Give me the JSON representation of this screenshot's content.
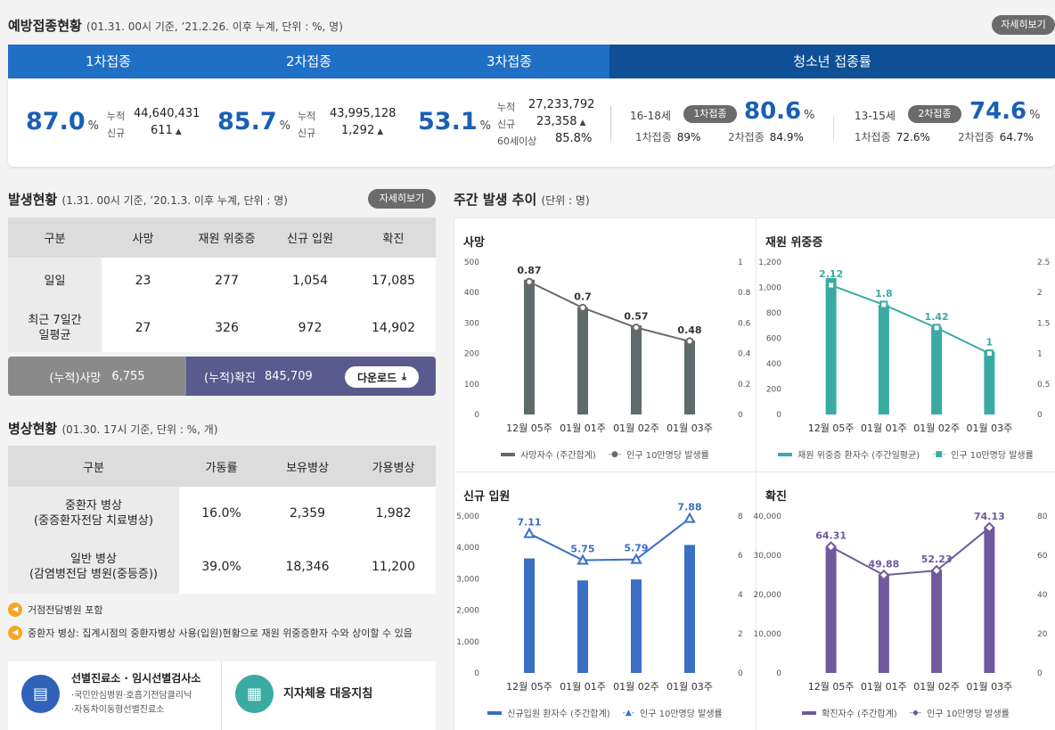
{
  "vaccination": {
    "title": "예방접종현황",
    "subtitle": "(01.31. 00시 기준, ’21.2.26. 이후 누계, 단위 : %, 명)",
    "detail_label": "자세히보기",
    "tabs": [
      "1차접종",
      "2차접종",
      "3차접종",
      "청소년 접종률"
    ],
    "dose1": {
      "pct": "87.0",
      "unit": "%",
      "total_label": "누적",
      "total": "44,640,431",
      "new_label": "신규",
      "new": "611"
    },
    "dose2": {
      "pct": "85.7",
      "unit": "%",
      "total_label": "누적",
      "total": "43,995,128",
      "new_label": "신규",
      "new": "1,292"
    },
    "dose3": {
      "pct": "53.1",
      "unit": "%",
      "total_label": "누적",
      "total": "27,233,792",
      "new_label": "신규",
      "new": "23,358",
      "over60_label": "60세이상",
      "over60": "85.8%"
    },
    "youth": [
      {
        "age": "16-18세",
        "badge": "1차접종",
        "pct": "80.6",
        "unit": "%",
        "d1_label": "1차접종",
        "d1": "89%",
        "d2_label": "2차접종",
        "d2": "84.9%"
      },
      {
        "age": "13-15세",
        "badge": "2차접종",
        "pct": "74.6",
        "unit": "%",
        "d1_label": "1차접종",
        "d1": "72.6%",
        "d2_label": "2차접종",
        "d2": "64.7%"
      }
    ]
  },
  "outbreak": {
    "title": "발생현황",
    "subtitle": "(1.31. 00시 기준, ’20.1.3. 이후 누계, 단위 : 명)",
    "detail_label": "자세히보기",
    "headers": [
      "구분",
      "사망",
      "재원 위중증",
      "신규 입원",
      "확진"
    ],
    "rows": [
      [
        "일일",
        "23",
        "277",
        "1,054",
        "17,085"
      ],
      [
        "최근 7일간\n일평균",
        "27",
        "326",
        "972",
        "14,902"
      ]
    ],
    "cum_death_label": "(누적)사망",
    "cum_death": "6,755",
    "cum_conf_label": "(누적)확진",
    "cum_conf": "845,709",
    "download_label": "다운로드"
  },
  "beds": {
    "title": "병상현황",
    "subtitle": "(01.30. 17시 기준, 단위 : %, 개)",
    "headers": [
      "구분",
      "가동률",
      "보유병상",
      "가용병상"
    ],
    "rows": [
      [
        "중환자 병상\n(중증환자전담 치료병상)",
        "16.0%",
        "2,359",
        "1,982"
      ],
      [
        "일반 병상\n(감염병전담 병원(중등증))",
        "39.0%",
        "18,346",
        "11,200"
      ]
    ],
    "notes": [
      "거점전담병원 포함",
      "중환자 병상: 집계시점의 중환자병상 사용(입원)현황으로 재원 위중증환자 수와 상이할 수 있음"
    ]
  },
  "links": {
    "clinic_title": "선별진료소 · 임시선별검사소",
    "clinic_items": [
      "·국민안심병원·호흡기전담클리닉",
      "·자동차이동형선별진료소"
    ],
    "local_title": "지자체용 대응지침"
  },
  "weekly": {
    "title": "주간 발생 추이",
    "subtitle": "(단위 : 명)"
  },
  "chart_data": [
    {
      "type": "bar",
      "title": "사망",
      "categories": [
        "12월 05주",
        "01월 01주",
        "01월 02주",
        "01월 03주"
      ],
      "series": [
        {
          "name": "사망자수 (주간합계)",
          "values": [
            442,
            352,
            292,
            242
          ],
          "axis": "left"
        },
        {
          "name": "인구 10만명당 발생률",
          "values": [
            0.87,
            0.7,
            0.57,
            0.48
          ],
          "axis": "right",
          "kind": "line"
        }
      ],
      "left_ticks": [
        "0",
        "100",
        "200",
        "300",
        "400",
        "500"
      ],
      "ylim": [
        0,
        500
      ],
      "right_ticks": [
        "0",
        "0.2",
        "0.4",
        "0.6",
        "0.8",
        "1"
      ],
      "y2lim": [
        0,
        1
      ],
      "labels": [
        "0.87",
        "0.7",
        "0.57",
        "0.48"
      ],
      "color": "#5f6b6b",
      "line_color": "#6b6b6b",
      "marker": "circle"
    },
    {
      "type": "bar",
      "title": "재원 위중증",
      "categories": [
        "12월 05주",
        "01월 01주",
        "01월 02주",
        "01월 03주"
      ],
      "series": [
        {
          "name": "재원 위중증 환자수 (주간일평균)",
          "values": [
            1075,
            862,
            690,
            495
          ],
          "axis": "left"
        },
        {
          "name": "인구 10만명당 발생률",
          "values": [
            2.12,
            1.8,
            1.42,
            1
          ],
          "axis": "right",
          "kind": "line"
        }
      ],
      "left_ticks": [
        "0",
        "200",
        "400",
        "600",
        "800",
        "1,000",
        "1,200"
      ],
      "ylim": [
        0,
        1200
      ],
      "right_ticks": [
        "0",
        "0.5",
        "1",
        "1.5",
        "2",
        "2.5"
      ],
      "y2lim": [
        0,
        2.5
      ],
      "labels": [
        "2.12",
        "1.8",
        "1.42",
        "1"
      ],
      "color": "#3aaba3",
      "line_color": "#3aaba3",
      "marker": "square"
    },
    {
      "type": "bar",
      "title": "신규 입원",
      "categories": [
        "12월 05주",
        "01월 01주",
        "01월 02주",
        "01월 03주"
      ],
      "series": [
        {
          "name": "신규입원 환자수 (주간합계)",
          "values": [
            3650,
            2950,
            2980,
            4080
          ],
          "axis": "left"
        },
        {
          "name": "인구 10만명당 발생률",
          "values": [
            7.11,
            5.75,
            5.79,
            7.88
          ],
          "axis": "right",
          "kind": "line"
        }
      ],
      "left_ticks": [
        "0",
        "1,000",
        "2,000",
        "3,000",
        "4,000",
        "5,000"
      ],
      "ylim": [
        0,
        5000
      ],
      "right_ticks": [
        "0",
        "2",
        "4",
        "6",
        "8"
      ],
      "y2lim": [
        0,
        8
      ],
      "labels": [
        "7.11",
        "5.75",
        "5.79",
        "7.88"
      ],
      "color": "#3a6fc4",
      "line_color": "#3a6fc4",
      "marker": "triangle"
    },
    {
      "type": "bar",
      "title": "확진",
      "categories": [
        "12월 05주",
        "01월 01주",
        "01월 02주",
        "01월 03주"
      ],
      "series": [
        {
          "name": "확진자수 (주간합계)",
          "values": [
            32200,
            25000,
            26100,
            37100
          ],
          "axis": "left"
        },
        {
          "name": "인구 10만명당 발생률",
          "values": [
            64.31,
            49.88,
            52.23,
            74.13
          ],
          "axis": "right",
          "kind": "line"
        }
      ],
      "left_ticks": [
        "0",
        "10,000",
        "20,000",
        "30,000",
        "40,000"
      ],
      "ylim": [
        0,
        40000
      ],
      "right_ticks": [
        "0",
        "20",
        "40",
        "60",
        "80"
      ],
      "y2lim": [
        0,
        80
      ],
      "labels": [
        "64.31",
        "49.88",
        "52.23",
        "74.13"
      ],
      "color": "#6e5a9c",
      "line_color": "#6e5a9c",
      "marker": "diamond"
    }
  ]
}
